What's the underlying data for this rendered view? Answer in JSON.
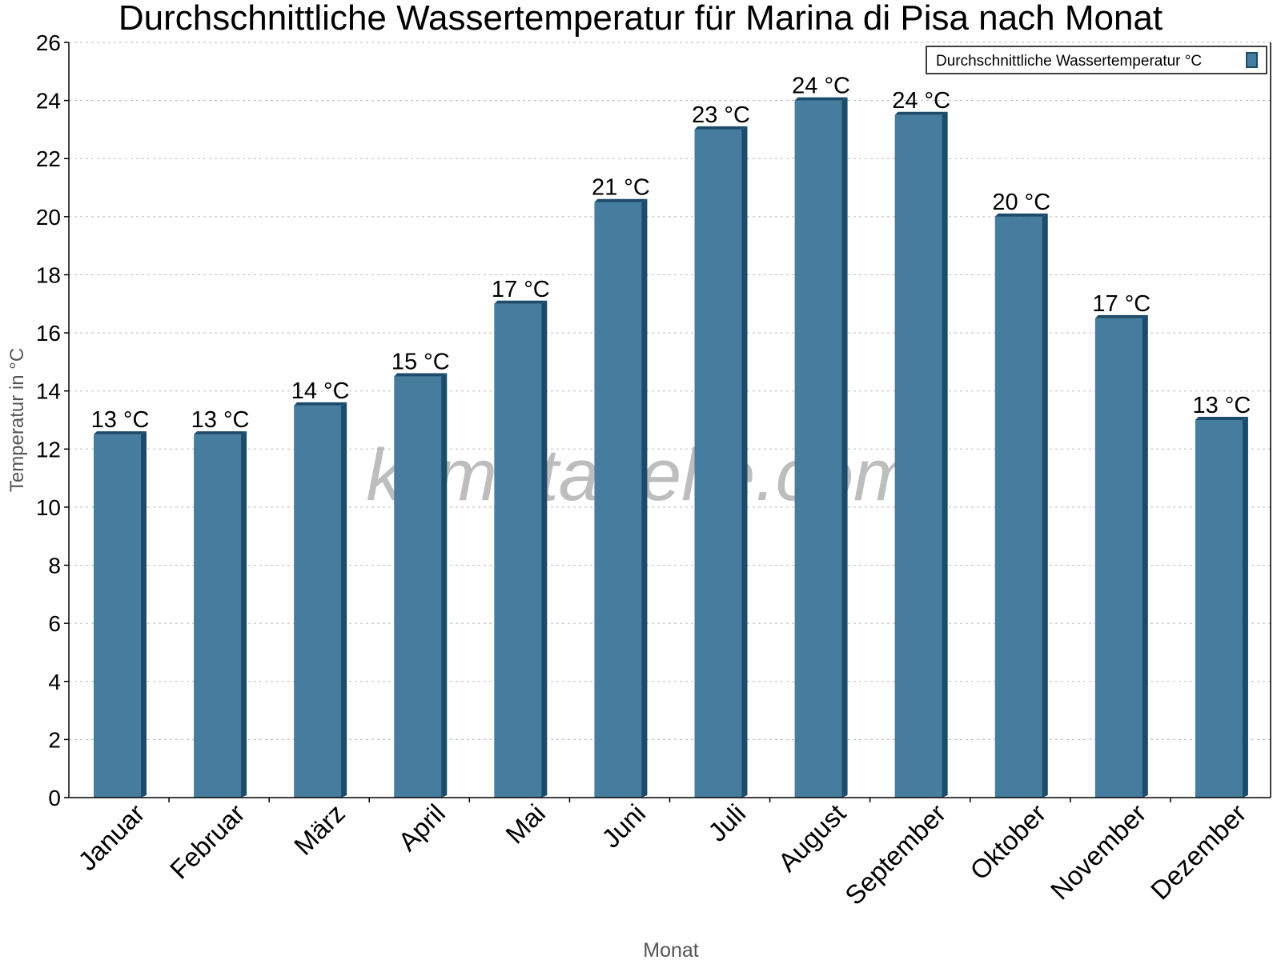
{
  "chart_data": {
    "type": "bar",
    "title": "Durchschnittliche Wassertemperatur für Marina di Pisa nach Monat",
    "xlabel": "Monat",
    "ylabel": "Temperatur in °C",
    "ylim": [
      0,
      26
    ],
    "yticks": [
      "0",
      "2",
      "4",
      "6",
      "8",
      "10",
      "12",
      "14",
      "16",
      "18",
      "20",
      "22",
      "24",
      "26"
    ],
    "grid": true,
    "legend_position": "top-right",
    "categories": [
      "Januar",
      "Februar",
      "März",
      "April",
      "Mai",
      "Juni",
      "Juli",
      "August",
      "September",
      "Oktober",
      "November",
      "Dezember"
    ],
    "series": [
      {
        "name": "Durchschnittliche Wassertemperatur °C",
        "color": "#467c9e",
        "edge_color": "#1c4b6c",
        "values": [
          12.5,
          12.5,
          13.5,
          14.5,
          17,
          20.5,
          23,
          24,
          23.5,
          20,
          16.5,
          13
        ],
        "labels": [
          "13 °C",
          "13 °C",
          "14 °C",
          "15 °C",
          "17 °C",
          "21 °C",
          "23 °C",
          "24 °C",
          "24 °C",
          "20 °C",
          "17 °C",
          "13 °C"
        ]
      }
    ],
    "watermark": "klimatabelle.com"
  }
}
